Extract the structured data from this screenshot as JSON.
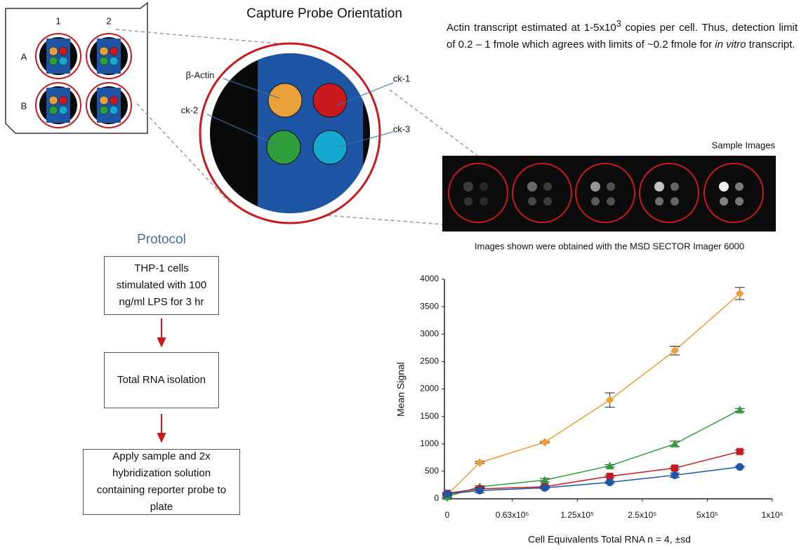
{
  "header": {
    "title": "Capture Probe Orientation"
  },
  "plate": {
    "columns": [
      "1",
      "2"
    ],
    "rows": [
      "A",
      "B"
    ]
  },
  "spots": {
    "actin": "β-Actin",
    "ck1": "ck-1",
    "ck2": "ck-2",
    "ck3": "ck-3"
  },
  "note": [
    "Actin transcript estimated at 1-5x10",
    "3",
    " copies per cell.  Thus, detection limit of 0.2 – 1 fmole which agrees with limits of ~0.2 fmole for ",
    "in vitro",
    " transcript."
  ],
  "images": {
    "title": "Sample Images",
    "caption": "Images shown were obtained with the MSD SECTOR Imager 6000"
  },
  "protocol": {
    "title": "Protocol",
    "steps": [
      "THP-1 cells stimulated with 100 ng/ml LPS for 3 hr",
      "Total RNA isolation",
      "Apply sample and 2x hybridization solution containing reporter probe to plate"
    ]
  },
  "chart_data": {
    "type": "line",
    "x_label": "Cell Equivalents Total RNA n = 4, ±sd",
    "y_label": "Mean Signal",
    "categories": [
      "0",
      null,
      "0.63x10⁵",
      null,
      "1.25x10⁵",
      null,
      "2.5x10⁵",
      null,
      "5x10⁵",
      null,
      "1x10⁶"
    ],
    "ylim": [
      0,
      4000
    ],
    "yticks": [
      0,
      500,
      1000,
      1500,
      2000,
      2500,
      3000,
      3500,
      4000
    ],
    "series": [
      {
        "color": "#e8a03a",
        "marker": "diamond",
        "values": [
          70,
          660,
          null,
          1030,
          null,
          1800,
          null,
          2700,
          null,
          3740,
          null
        ],
        "errors": [
          30,
          20,
          null,
          15,
          null,
          130,
          null,
          80,
          null,
          110,
          null
        ]
      },
      {
        "color": "#2f9e3a",
        "marker": "triangle",
        "values": [
          40,
          220,
          null,
          340,
          null,
          600,
          null,
          1000,
          null,
          1620,
          null
        ],
        "errors": [
          20,
          20,
          null,
          30,
          null,
          20,
          null,
          50,
          null,
          25,
          null
        ]
      },
      {
        "color": "#c8191e",
        "marker": "square",
        "values": [
          100,
          180,
          null,
          220,
          null,
          410,
          null,
          560,
          null,
          860,
          null
        ],
        "errors": [
          15,
          30,
          null,
          20,
          null,
          20,
          null,
          20,
          null,
          25,
          null
        ]
      },
      {
        "color": "#1f55a6",
        "marker": "circle",
        "values": [
          90,
          150,
          null,
          200,
          null,
          300,
          null,
          430,
          null,
          580,
          null
        ],
        "errors": [
          10,
          40,
          null,
          20,
          null,
          20,
          null,
          40,
          null,
          15,
          null
        ]
      }
    ]
  }
}
